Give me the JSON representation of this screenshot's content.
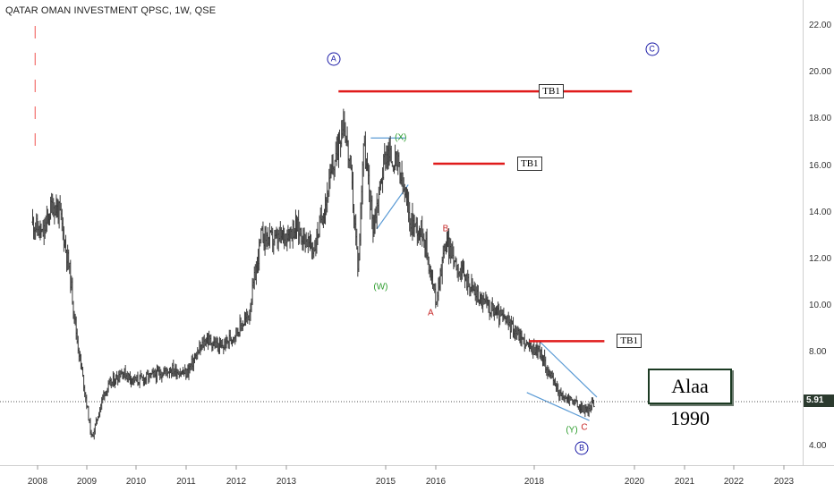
{
  "header": {
    "title": "QATAR OMAN INVESTMENT QPSC, 1W, QSE"
  },
  "price_label": "5.91",
  "signature": "Alaa 1990",
  "colors": {
    "up": "#26a69a",
    "down": "#ef5350",
    "bar": "#3a3a3a",
    "target_line": "#e01b1b",
    "channel": "#5b9bd5",
    "wave_label_red": "#c62828",
    "wave_label_green": "#2e9d2e",
    "circle_label": "#1a1aa6"
  },
  "chart_data": {
    "type": "ohlc",
    "title": "QATAR OMAN INVESTMENT QPSC, 1W, QSE",
    "x_ticks": [
      "2008",
      "2009",
      "2010",
      "2011",
      "2012",
      "2013",
      "2015",
      "2016",
      "2018",
      "2020",
      "2021",
      "2022",
      "2023"
    ],
    "y_ticks": [
      "22.00",
      "20.00",
      "18.00",
      "16.00",
      "14.00",
      "12.00",
      "10.00",
      "8.00",
      "6.00",
      "4.00"
    ],
    "ylim": [
      3.4,
      23.0
    ],
    "last_price": 5.91,
    "price_path": [
      [
        2007.9,
        13.6
      ],
      [
        2008.1,
        13.0
      ],
      [
        2008.3,
        14.4
      ],
      [
        2008.45,
        14.0
      ],
      [
        2008.65,
        11.5
      ],
      [
        2008.8,
        8.6
      ],
      [
        2008.95,
        6.5
      ],
      [
        2009.1,
        4.3
      ],
      [
        2009.35,
        6.3
      ],
      [
        2009.7,
        7.2
      ],
      [
        2010.0,
        6.8
      ],
      [
        2010.3,
        7.0
      ],
      [
        2010.7,
        7.3
      ],
      [
        2011.0,
        7.1
      ],
      [
        2011.4,
        8.6
      ],
      [
        2011.7,
        8.2
      ],
      [
        2012.0,
        8.9
      ],
      [
        2012.25,
        9.6
      ],
      [
        2012.5,
        13.0
      ],
      [
        2012.8,
        12.8
      ],
      [
        2013.2,
        13.4
      ],
      [
        2013.55,
        12.4
      ],
      [
        2013.8,
        14.6
      ],
      [
        2014.0,
        16.5
      ],
      [
        2014.15,
        18.1
      ],
      [
        2014.3,
        15.6
      ],
      [
        2014.45,
        11.5
      ],
      [
        2014.55,
        17.1
      ],
      [
        2014.75,
        13.4
      ],
      [
        2015.0,
        16.6
      ],
      [
        2015.25,
        16.0
      ],
      [
        2015.5,
        13.6
      ],
      [
        2015.75,
        13.2
      ],
      [
        2016.0,
        10.2
      ],
      [
        2016.2,
        12.8
      ],
      [
        2016.5,
        11.5
      ],
      [
        2016.9,
        10.3
      ],
      [
        2017.3,
        9.6
      ],
      [
        2017.6,
        9.0
      ],
      [
        2017.9,
        8.2
      ],
      [
        2018.1,
        8.1
      ],
      [
        2018.3,
        7.1
      ],
      [
        2018.55,
        6.1
      ],
      [
        2018.75,
        6.0
      ],
      [
        2018.9,
        5.7
      ],
      [
        2019.05,
        5.5
      ],
      [
        2019.2,
        5.9
      ]
    ],
    "annotations": {
      "targets": [
        {
          "label": "TB1",
          "price": 19.2,
          "x_start": 2014.05,
          "x_end": 2019.95
        },
        {
          "label": "TB1",
          "price": 16.1,
          "x_start": 2015.95,
          "x_end": 2017.4
        },
        {
          "label": "TB1",
          "price": 8.5,
          "x_start": 2017.9,
          "x_end": 2019.4
        }
      ],
      "wave_labels_red": [
        {
          "text": "A",
          "x": 2015.9,
          "price": 9.7
        },
        {
          "text": "B",
          "x": 2016.2,
          "price": 13.3
        },
        {
          "text": "C",
          "x": 2019.0,
          "price": 4.8
        }
      ],
      "wave_labels_green": [
        {
          "text": "(W)",
          "x": 2014.9,
          "price": 10.8
        },
        {
          "text": "(X)",
          "x": 2015.3,
          "price": 17.2
        },
        {
          "text": "(Y)",
          "x": 2018.75,
          "price": 4.7
        }
      ],
      "circled_labels": [
        {
          "text": "A",
          "x": 2013.95,
          "price": 20.6
        },
        {
          "text": "B",
          "x": 2018.95,
          "price": 3.9
        },
        {
          "text": "C",
          "x": 2020.35,
          "price": 21.0
        }
      ]
    }
  }
}
